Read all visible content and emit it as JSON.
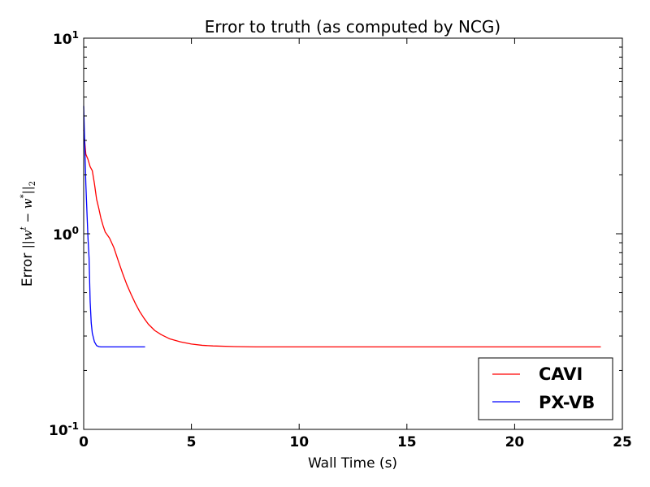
{
  "chart_data": {
    "type": "line",
    "title": "Error to truth (as computed by NCG)",
    "xlabel": "Wall Time (s)",
    "ylabel": "Error ||wᵗ − w*||₂",
    "ylabel_parts": {
      "prefix": "Error ",
      "math": "||w",
      "sup1": "t",
      "mid": " − w",
      "sup2": "*",
      "close": "||",
      "sub": "2"
    },
    "xlim": [
      0,
      25
    ],
    "ylim": [
      0.1,
      10
    ],
    "yscale": "log",
    "grid": false,
    "legend_position": "lower-right",
    "xticks": [
      {
        "value": 0,
        "label": "0"
      },
      {
        "value": 5,
        "label": "5"
      },
      {
        "value": 10,
        "label": "10"
      },
      {
        "value": 15,
        "label": "15"
      },
      {
        "value": 20,
        "label": "20"
      },
      {
        "value": 25,
        "label": "25"
      }
    ],
    "yticks": [
      {
        "value": 0.1,
        "base": "10",
        "exp": "-1"
      },
      {
        "value": 1,
        "base": "10",
        "exp": "0"
      },
      {
        "value": 10,
        "base": "10",
        "exp": "1"
      }
    ],
    "series": [
      {
        "name": "CAVI",
        "color": "#ff0000",
        "x": [
          0,
          0.1,
          0.2,
          0.3,
          0.4,
          0.5,
          0.6,
          0.7,
          0.8,
          0.9,
          1.0,
          1.2,
          1.4,
          1.6,
          1.8,
          2.0,
          2.2,
          2.4,
          2.6,
          2.8,
          3.0,
          3.3,
          3.6,
          4.0,
          4.5,
          5.0,
          5.5,
          6.0,
          7.0,
          8.0,
          10.0,
          12.0,
          15.0,
          18.0,
          20.0,
          22.0,
          24.0
        ],
        "y": [
          3.4,
          2.55,
          2.4,
          2.2,
          2.1,
          1.8,
          1.5,
          1.35,
          1.2,
          1.1,
          1.02,
          0.95,
          0.85,
          0.73,
          0.63,
          0.55,
          0.49,
          0.44,
          0.4,
          0.37,
          0.345,
          0.32,
          0.305,
          0.29,
          0.28,
          0.273,
          0.269,
          0.267,
          0.265,
          0.264,
          0.264,
          0.264,
          0.264,
          0.264,
          0.264,
          0.264,
          0.264
        ]
      },
      {
        "name": "PX-VB",
        "color": "#0000ff",
        "x": [
          0,
          0.05,
          0.1,
          0.15,
          0.2,
          0.25,
          0.3,
          0.35,
          0.4,
          0.5,
          0.6,
          0.7,
          0.8,
          0.9,
          1.0,
          1.5,
          2.0,
          2.5,
          2.85
        ],
        "y": [
          4.5,
          2.8,
          1.8,
          1.3,
          0.95,
          0.75,
          0.45,
          0.35,
          0.31,
          0.28,
          0.268,
          0.265,
          0.264,
          0.264,
          0.264,
          0.264,
          0.264,
          0.264,
          0.264
        ]
      }
    ]
  }
}
